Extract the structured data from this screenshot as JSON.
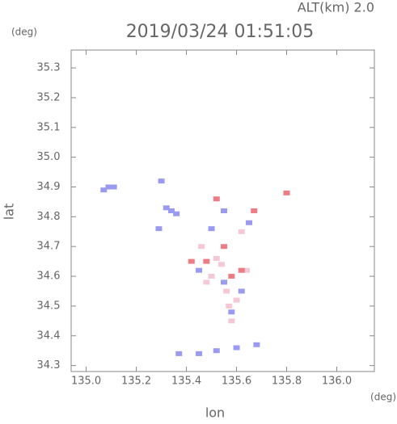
{
  "chart_data": {
    "type": "scatter",
    "title": "2019/03/24 01:51:05",
    "subtitle": "ALT(km) 2.0",
    "y_unit": "(deg)",
    "x_unit": "(deg)",
    "xlabel": "lon",
    "ylabel": "lat",
    "xlim": [
      134.94,
      136.15
    ],
    "ylim": [
      34.28,
      35.36
    ],
    "xticks": [
      {
        "value": 135,
        "label": "135.0"
      },
      135.2,
      135.4,
      135.6,
      135.8,
      {
        "value": 136,
        "label": "136.0"
      }
    ],
    "yticks": [
      34.3,
      34.4,
      34.5,
      34.6,
      34.7,
      34.8,
      34.9,
      {
        "value": 35,
        "label": "35.0"
      },
      35.1,
      35.2,
      35.3
    ],
    "grid": false,
    "series": [
      {
        "color": "#f4c8d4",
        "x": [
          135.5,
          135.56,
          135.6,
          135.52,
          135.46,
          135.62,
          135.58,
          135.54,
          135.48,
          135.64,
          135.57
        ],
        "values": [
          34.6,
          34.55,
          34.52,
          34.66,
          34.7,
          34.75,
          34.45,
          34.64,
          34.58,
          34.62,
          34.5
        ]
      },
      {
        "color": "#9a9af0",
        "x": [
          135.09,
          135.11,
          135.07,
          135.32,
          135.34,
          135.36,
          135.3,
          135.37,
          135.45,
          135.52,
          135.6,
          135.68,
          135.45,
          135.55,
          135.62,
          135.58,
          135.5,
          135.65,
          135.55,
          135.29
        ],
        "values": [
          34.9,
          34.9,
          34.89,
          34.83,
          34.82,
          34.81,
          34.92,
          34.34,
          34.34,
          34.35,
          34.36,
          34.37,
          34.62,
          34.58,
          34.55,
          34.48,
          34.76,
          34.78,
          34.82,
          34.76
        ]
      },
      {
        "color": "#ee7c84",
        "x": [
          135.52,
          135.48,
          135.62,
          135.58,
          135.67,
          135.8,
          135.42,
          135.55
        ],
        "values": [
          34.86,
          34.65,
          34.62,
          34.6,
          34.82,
          34.88,
          34.65,
          34.7
        ]
      }
    ]
  }
}
